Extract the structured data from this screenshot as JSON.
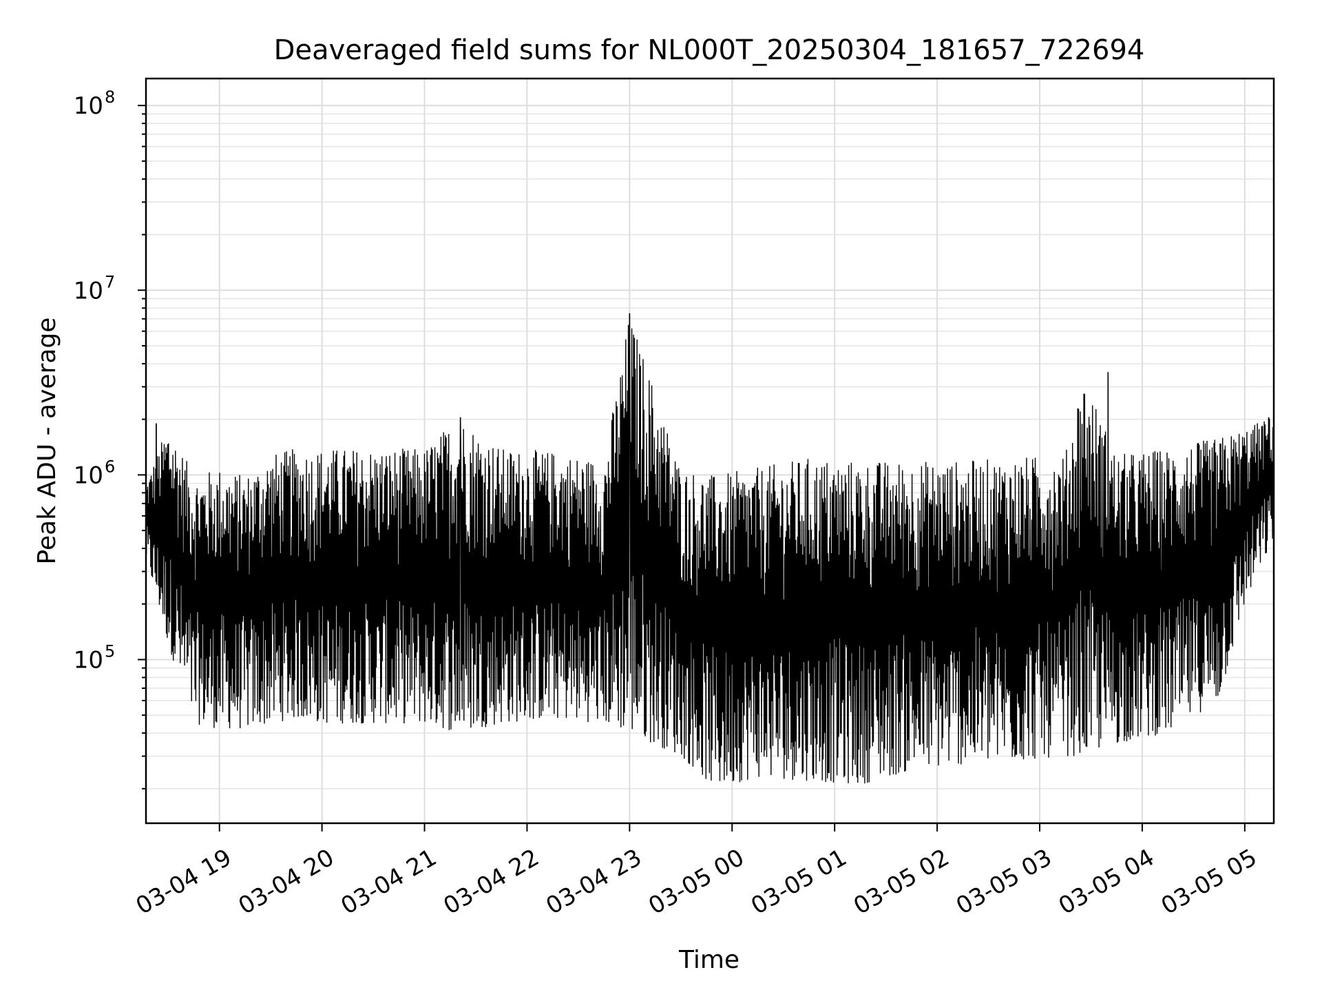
{
  "chart_data": {
    "type": "line",
    "title": "Deaveraged field sums for NL000T_20250304_181657_722694",
    "xlabel": "Time",
    "ylabel": "Peak ADU - average",
    "yscale": "log",
    "grid": true,
    "xlim": [
      "2025-03-04 18:17",
      "2025-03-05 05:17"
    ],
    "ylim": [
      13000,
      140000000
    ],
    "x_ticks": [
      {
        "value": "2025-03-04 19:00",
        "label": "03-04 19"
      },
      {
        "value": "2025-03-04 20:00",
        "label": "03-04 20"
      },
      {
        "value": "2025-03-04 21:00",
        "label": "03-04 21"
      },
      {
        "value": "2025-03-04 22:00",
        "label": "03-04 22"
      },
      {
        "value": "2025-03-04 23:00",
        "label": "03-04 23"
      },
      {
        "value": "2025-03-05 00:00",
        "label": "03-05 00"
      },
      {
        "value": "2025-03-05 01:00",
        "label": "03-05 01"
      },
      {
        "value": "2025-03-05 02:00",
        "label": "03-05 02"
      },
      {
        "value": "2025-03-05 03:00",
        "label": "03-05 03"
      },
      {
        "value": "2025-03-05 04:00",
        "label": "03-05 04"
      },
      {
        "value": "2025-03-05 05:00",
        "label": "03-05 05"
      }
    ],
    "y_ticks": [
      {
        "value": 100000,
        "base": "10",
        "exp": "5"
      },
      {
        "value": 1000000,
        "base": "10",
        "exp": "6"
      },
      {
        "value": 10000000,
        "base": "10",
        "exp": "7"
      },
      {
        "value": 100000000,
        "base": "10",
        "exp": "8"
      }
    ],
    "series": [
      {
        "color": "#000000",
        "envelope": [
          {
            "t": "2025-03-04 18:17",
            "low": 350000,
            "high": 900000
          },
          {
            "t": "2025-03-04 18:30",
            "low": 120000,
            "high": 1900000
          },
          {
            "t": "2025-03-04 18:45",
            "low": 45000,
            "high": 1000000
          },
          {
            "t": "2025-03-04 19:00",
            "low": 42000,
            "high": 1100000
          },
          {
            "t": "2025-03-04 19:15",
            "low": 42000,
            "high": 1000000
          },
          {
            "t": "2025-03-04 19:30",
            "low": 45000,
            "high": 1300000
          },
          {
            "t": "2025-03-04 19:45",
            "low": 48000,
            "high": 1400000
          },
          {
            "t": "2025-03-04 20:00",
            "low": 45000,
            "high": 1400000
          },
          {
            "t": "2025-03-04 20:30",
            "low": 45000,
            "high": 1400000
          },
          {
            "t": "2025-03-04 21:00",
            "low": 45000,
            "high": 1400000
          },
          {
            "t": "2025-03-04 21:20",
            "low": 40000,
            "high": 2100000
          },
          {
            "t": "2025-03-04 21:45",
            "low": 45000,
            "high": 1400000
          },
          {
            "t": "2025-03-04 22:15",
            "low": 48000,
            "high": 1350000
          },
          {
            "t": "2025-03-04 22:45",
            "low": 45000,
            "high": 1200000
          },
          {
            "t": "2025-03-04 23:00",
            "low": 40000,
            "high": 7500000
          },
          {
            "t": "2025-03-04 23:30",
            "low": 30000,
            "high": 1100000
          },
          {
            "t": "2025-03-04 23:50",
            "low": 20000,
            "high": 1000000
          },
          {
            "t": "2025-03-05 00:15",
            "low": 23000,
            "high": 1100000
          },
          {
            "t": "2025-03-05 00:45",
            "low": 22000,
            "high": 1250000
          },
          {
            "t": "2025-03-05 01:15",
            "low": 21000,
            "high": 1200000
          },
          {
            "t": "2025-03-05 01:45",
            "low": 25000,
            "high": 1200000
          },
          {
            "t": "2025-03-05 02:15",
            "low": 27000,
            "high": 1200000
          },
          {
            "t": "2025-03-05 02:45",
            "low": 28000,
            "high": 1250000
          },
          {
            "t": "2025-03-05 03:15",
            "low": 30000,
            "high": 1300000
          },
          {
            "t": "2025-03-05 03:25",
            "low": 30000,
            "high": 3600000
          },
          {
            "t": "2025-03-05 03:45",
            "low": 35000,
            "high": 1300000
          },
          {
            "t": "2025-03-05 04:15",
            "low": 40000,
            "high": 1400000
          },
          {
            "t": "2025-03-05 04:45",
            "low": 60000,
            "high": 1600000
          },
          {
            "t": "2025-03-05 05:00",
            "low": 200000,
            "high": 1800000
          },
          {
            "t": "2025-03-05 05:17",
            "low": 450000,
            "high": 2100000
          }
        ],
        "spikes": [
          {
            "t": "2025-03-04 23:00",
            "value": 7500000
          },
          {
            "t": "2025-03-05 03:40",
            "value": 3600000
          },
          {
            "t": "2025-03-04 21:21",
            "value": 2050000
          },
          {
            "t": "2025-03-04 18:23",
            "value": 1900000
          },
          {
            "t": "2025-03-05 05:14",
            "value": 2050000
          }
        ]
      }
    ]
  }
}
